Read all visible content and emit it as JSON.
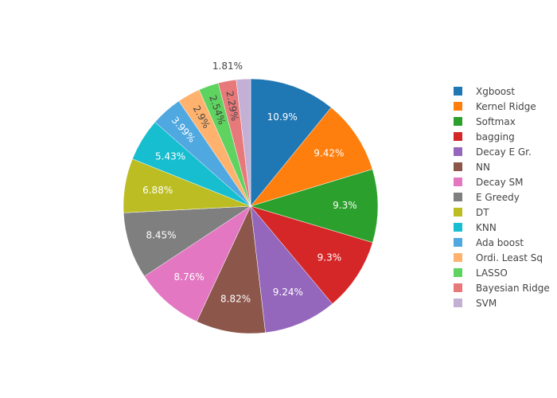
{
  "chart_data": {
    "type": "pie",
    "title": "",
    "direction": "clockwise",
    "labels": [
      "Xgboost",
      "Kernel Ridge",
      "Softmax",
      "bagging",
      "Decay E Gr.",
      "NN",
      "Decay SM",
      "E Greedy",
      "DT",
      "KNN",
      "Ada boost",
      "Ordi. Least Sq",
      "LASSO",
      "Bayesian Ridge",
      "SVM"
    ],
    "values": [
      10.9,
      9.42,
      9.3,
      9.3,
      9.24,
      8.82,
      8.76,
      8.45,
      6.88,
      5.43,
      3.99,
      2.9,
      2.54,
      2.29,
      1.81
    ],
    "value_labels": [
      "10.9%",
      "9.42%",
      "9.3%",
      "9.3%",
      "9.24%",
      "8.82%",
      "8.76%",
      "8.45%",
      "6.88%",
      "5.43%",
      "3.99%",
      "2.9%",
      "2.54%",
      "2.29%",
      "1.81%"
    ],
    "colors": [
      "#1f77b4",
      "#ff7f0e",
      "#2ca02c",
      "#d62728",
      "#9467bd",
      "#8c564b",
      "#e377c2",
      "#7f7f7f",
      "#bcbd22",
      "#17becf",
      "#4fa8e0",
      "#ffb26e",
      "#5fd35f",
      "#e7797a",
      "#c5b0d5"
    ],
    "legend_position": "right"
  }
}
